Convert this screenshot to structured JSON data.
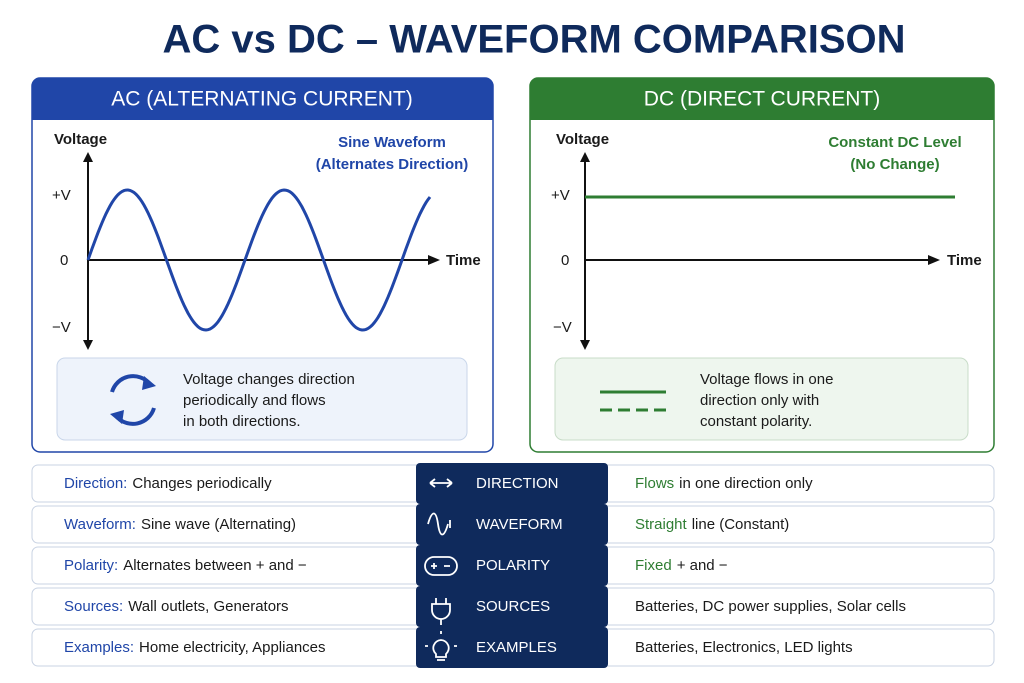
{
  "title": "AC vs DC – WAVEFORM COMPARISON",
  "ac": {
    "header": "AC (ALTERNATING CURRENT)",
    "y_axis_label": "Voltage",
    "x_axis_label": "Time",
    "ticks": [
      "+V",
      "0",
      "−V"
    ],
    "annotation": [
      "Sine Waveform",
      "(Alternates Direction)"
    ],
    "note": [
      "Voltage changes direction",
      "periodically and flows",
      "in both directions."
    ]
  },
  "dc": {
    "header": "DC (DIRECT CURRENT)",
    "y_axis_label": "Voltage",
    "x_axis_label": "Time",
    "ticks": [
      "+V",
      "0",
      "−V"
    ],
    "annotation": [
      "Constant DC Level",
      "(No Change)"
    ],
    "note": [
      "Voltage flows in one",
      "direction only with",
      "constant polarity."
    ]
  },
  "rows": [
    {
      "ac_label": "Direction:",
      "ac_text": "Changes periodically",
      "center": "DIRECTION",
      "dc_label": "Flows",
      "dc_text": "in one direction only"
    },
    {
      "ac_label": "Waveform:",
      "ac_text": "Sine wave (Alternating)",
      "center": "WAVEFORM",
      "dc_label": "Straight",
      "dc_text": "line (Constant)"
    },
    {
      "ac_label": "Polarity:",
      "ac_text": "Alternates between + and −",
      "center": "POLARITY",
      "dc_label": "Fixed",
      "dc_text": "+ and −"
    },
    {
      "ac_label": "Sources:",
      "ac_text": "Wall outlets, Generators",
      "center": "SOURCES",
      "dc_text": "Batteries, DC power supplies, Solar cells"
    },
    {
      "ac_label": "Examples:",
      "ac_text": "Home electricity, Appliances",
      "center": "EXAMPLES",
      "dc_text": "Batteries, Electronics, LED lights"
    }
  ]
}
